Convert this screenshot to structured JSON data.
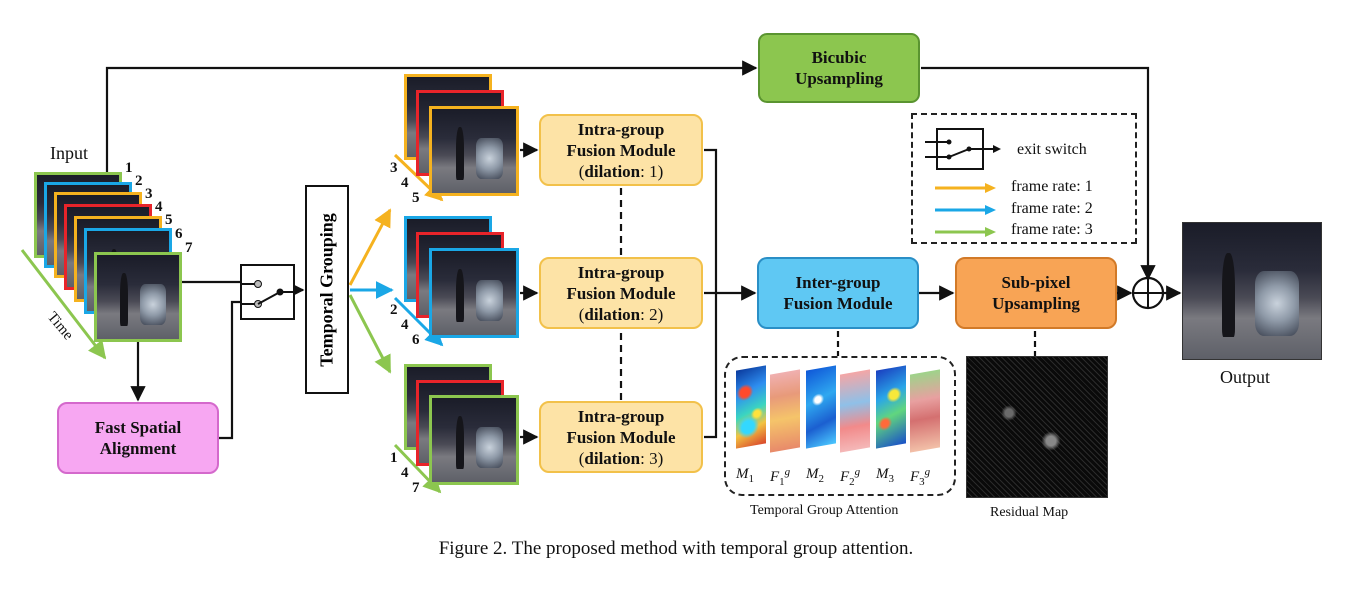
{
  "figure": {
    "caption": "Figure 2. The proposed method with temporal group attention.",
    "input_label": "Input",
    "time_label": "Time",
    "output_label": "Output",
    "frame_indices": [
      "1",
      "2",
      "3",
      "4",
      "5",
      "6",
      "7"
    ],
    "modules": {
      "bicubic": [
        "Bicubic",
        "Upsampling"
      ],
      "temporal_grouping": "Temporal Grouping",
      "fast_spatial_alignment": [
        "Fast Spatial",
        "Alignment"
      ],
      "intra_groups": [
        {
          "line1": "Intra-group",
          "line2": "Fusion Module",
          "dil_key": "dilation",
          "dil_val": ": 1)"
        },
        {
          "line1": "Intra-group",
          "line2": "Fusion Module",
          "dil_key": "dilation",
          "dil_val": ": 2)"
        },
        {
          "line1": "Intra-group",
          "line2": "Fusion Module",
          "dil_key": "dilation",
          "dil_val": ": 3)"
        }
      ],
      "inter_group": [
        "Inter-group",
        "Fusion Module"
      ],
      "sub_pixel": [
        "Sub-pixel",
        "Upsampling"
      ]
    },
    "groups": [
      {
        "indices": [
          "3",
          "4",
          "5"
        ],
        "color": "#f5b21f"
      },
      {
        "indices": [
          "2",
          "4",
          "6"
        ],
        "color": "#1aa7e6"
      },
      {
        "indices": [
          "1",
          "4",
          "7"
        ],
        "color": "#8cc64f"
      }
    ],
    "legend": {
      "switch_label": "exit switch",
      "items": [
        {
          "label": "frame rate: 1",
          "color": "#f5b21f"
        },
        {
          "label": "frame rate: 2",
          "color": "#1aa7e6"
        },
        {
          "label": "frame rate: 3",
          "color": "#8cc64f"
        }
      ]
    },
    "attention": {
      "caption": "Temporal Group Attention",
      "labels": [
        "M",
        "1",
        "F",
        "1",
        "g",
        "M",
        "2",
        "F",
        "2",
        "g",
        "M",
        "3",
        "F",
        "3",
        "g"
      ]
    },
    "residual_caption": "Residual Map",
    "colors": {
      "frame_green": "#8cc64f",
      "frame_blue": "#1aa7e6",
      "frame_orange": "#f5b21f",
      "frame_red": "#e8242a"
    }
  }
}
